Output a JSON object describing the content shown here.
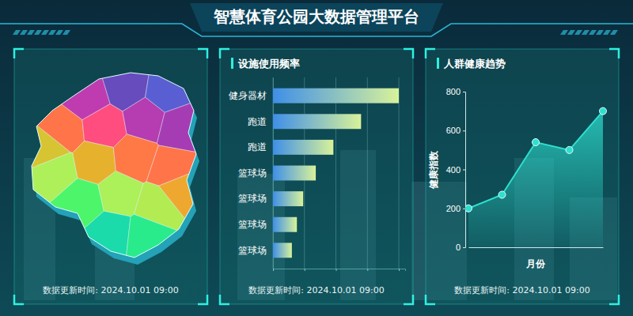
{
  "title": "智慧体育公园大数据管理平台",
  "map_panel": {
    "footer": "数据更新时间: 2024.10.01 09:00"
  },
  "chart_data": [
    {
      "type": "bar",
      "title": "设施使用频率",
      "orientation": "horizontal",
      "categories": [
        "健身器材",
        "跑道",
        "跑道",
        "篮球场",
        "篮球场",
        "篮球场",
        "篮球场"
      ],
      "values": [
        100,
        70,
        48,
        34,
        24,
        19,
        15
      ],
      "color": "#3f8fe8",
      "xlim": [
        0,
        105
      ],
      "xticks": [
        0,
        25,
        50,
        75,
        100
      ],
      "grid": true,
      "tick_labels": "y",
      "annotations": [
        "数据更新时间: 2024.10.01 09:00"
      ]
    },
    {
      "type": "line",
      "title": "人群健康趋势",
      "categories": [
        null,
        null,
        null,
        null,
        null
      ],
      "values": [
        200,
        270,
        540,
        500,
        700
      ],
      "color": "#2de0d0",
      "ylim": [
        0,
        800
      ],
      "yticks": [
        0,
        200,
        400,
        600,
        800
      ],
      "xlabel": "月份",
      "ylabel": "健康指数",
      "grid": false,
      "tick_labels": "y",
      "marker": "circle",
      "annotations": [
        "数据更新时间: 2024.10.01 09:00"
      ]
    }
  ]
}
